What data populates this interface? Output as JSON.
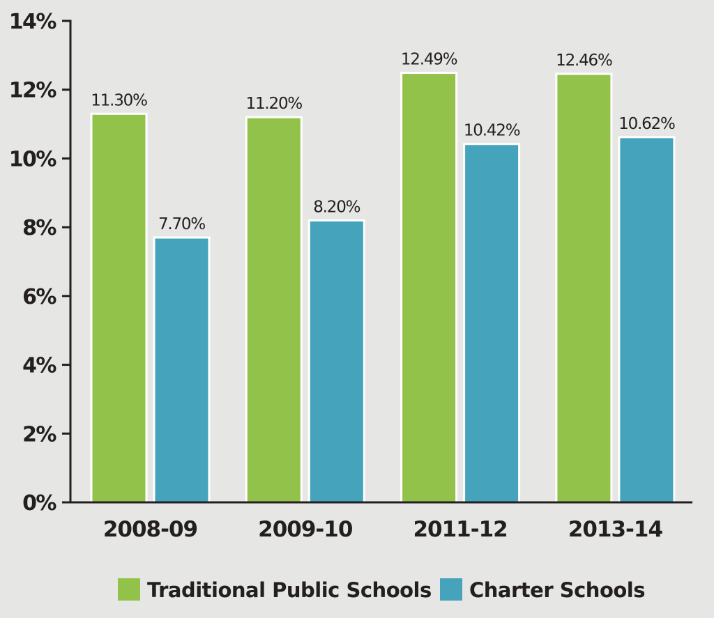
{
  "chart_data": {
    "type": "bar",
    "categories": [
      "2008-09",
      "2009-10",
      "2011-12",
      "2013-14"
    ],
    "series": [
      {
        "name": "Traditional Public Schools",
        "values": [
          11.3,
          11.2,
          12.49,
          12.46
        ],
        "labels": [
          "11.30%",
          "11.20%",
          "12.49%",
          "12.46%"
        ],
        "color": "#93c24a"
      },
      {
        "name": "Charter Schools",
        "values": [
          7.7,
          8.2,
          10.42,
          10.62
        ],
        "labels": [
          "7.70%",
          "8.20%",
          "10.42%",
          "10.62%"
        ],
        "color": "#45a4bb"
      }
    ],
    "yticks": [
      "0%",
      "2%",
      "4%",
      "6%",
      "8%",
      "10%",
      "12%",
      "14%"
    ],
    "ylim": [
      0,
      14
    ],
    "title": "",
    "xlabel": "",
    "ylabel": "",
    "grid": false,
    "legend_position": "bottom-center"
  },
  "colors": {
    "background": "#e6e6e4",
    "axis": "#231f20",
    "bar_outline": "#ffffff"
  }
}
